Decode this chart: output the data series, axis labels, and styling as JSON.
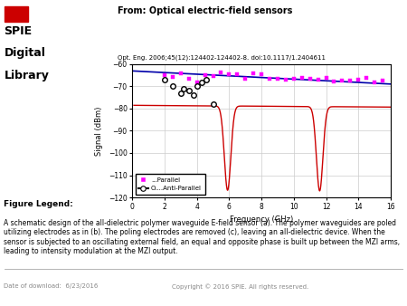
{
  "title_main": "From: Optical electric-field sensors",
  "subtitle": "Opt. Eng. 2006;45(12):124402-124402-8. doi:10.1117/1.2404611",
  "xlabel": "Frequency (GHz)",
  "ylabel": "Signal (dBm)",
  "xlim": [
    0,
    16
  ],
  "ylim": [
    -120,
    -60
  ],
  "xticks": [
    0,
    2,
    4,
    6,
    8,
    10,
    12,
    14,
    16
  ],
  "yticks": [
    -120,
    -110,
    -100,
    -90,
    -80,
    -70,
    -60
  ],
  "figure_legend_title": "Figure Legend:",
  "figure_legend_text": "A schematic design of the all-dielectric polymer waveguide E-field sensor (a). The polymer waveguides are poled utilizing electrodes as in (b). The poling electrodes are removed (c), leaving an all-dielectric device. When the sensor is subjected to an oscillating external field, an equal and opposite phase is built up between the MZI arms, leading to intensity modulation at the MZI output.",
  "footer_left": "Date of download:  6/23/2016",
  "footer_right": "Copyright © 2016 SPIE. All rights reserved.",
  "parallel_color": "#FF00FF",
  "anti_parallel_color": "#000000",
  "blue_line_color": "#0000AA",
  "red_line_color": "#CC0000",
  "background_color": "#FFFFFF",
  "plot_bg_color": "#FFFFFF",
  "grid_color": "#CCCCCC",
  "legend_label_parallel": "...Parallel",
  "legend_label_anti": "O....Anti-Parallel"
}
